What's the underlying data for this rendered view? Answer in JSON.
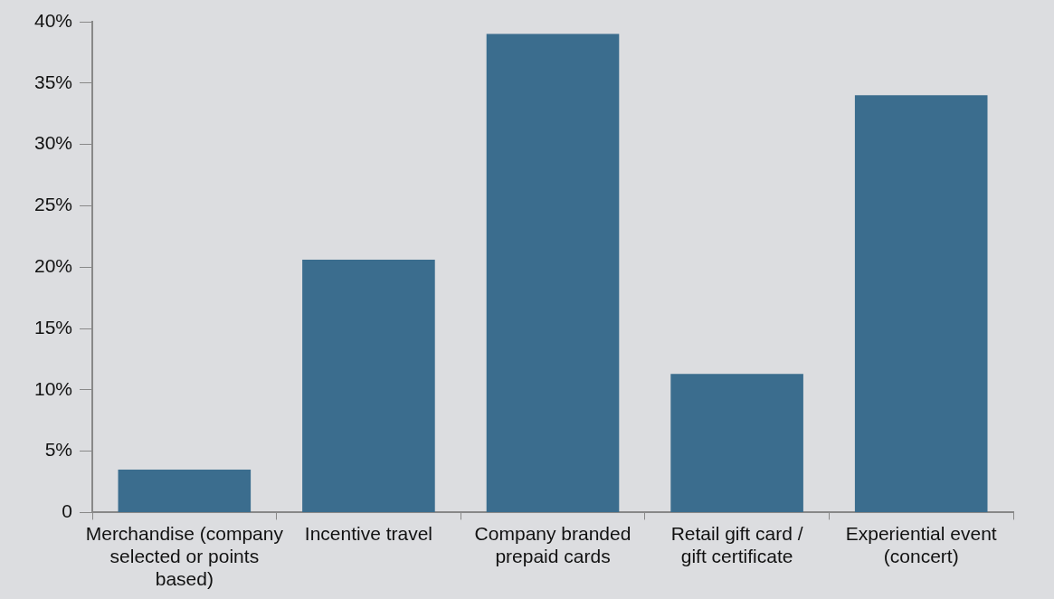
{
  "chart_data": {
    "type": "bar",
    "categories": [
      "Merchandise (company selected or points based)",
      "Incentive travel",
      "Company branded prepaid cards",
      "Retail gift card / gift certificate",
      "Experiential event (concert)"
    ],
    "values": [
      3.5,
      20.6,
      39.0,
      11.3,
      34.0
    ],
    "color": "#3b6d8e",
    "ylim": [
      0,
      40
    ],
    "yticks": [
      0,
      {
        "value": 5,
        "label": "5%"
      },
      {
        "value": 10,
        "label": "10%"
      },
      {
        "value": 15,
        "label": "15%"
      },
      {
        "value": 20,
        "label": "20%"
      },
      {
        "value": 25,
        "label": "25%"
      },
      {
        "value": 30,
        "label": "30%"
      },
      {
        "value": 35,
        "label": "35%"
      },
      {
        "value": 40,
        "label": "40%"
      }
    ],
    "grid": false,
    "legend": false
  }
}
